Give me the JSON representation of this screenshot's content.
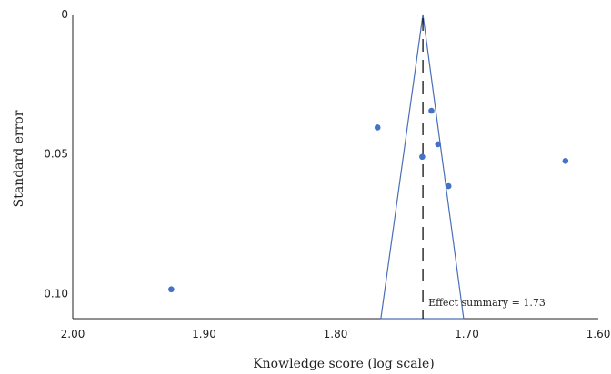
{
  "chart_data": {
    "type": "scatter",
    "title": "",
    "xlabel": "Knowledge score (log scale)",
    "ylabel": "Standard error",
    "x_reversed": true,
    "xlim": [
      2.0,
      1.6
    ],
    "ylim": [
      0,
      0.109
    ],
    "y_inverted": true,
    "x_ticks": [
      {
        "value": 2.0,
        "label": "2.00"
      },
      {
        "value": 1.9,
        "label": "1.90"
      },
      {
        "value": 1.8,
        "label": "1.80"
      },
      {
        "value": 1.7,
        "label": "1.70"
      },
      {
        "value": 1.6,
        "label": "1.60"
      }
    ],
    "y_ticks": [
      {
        "value": 0,
        "label": "0"
      },
      {
        "value": 0.05,
        "label": "0.05"
      },
      {
        "value": 0.1,
        "label": "0.10"
      }
    ],
    "points": [
      {
        "x": 1.925,
        "y": 0.0985
      },
      {
        "x": 1.768,
        "y": 0.0405
      },
      {
        "x": 1.727,
        "y": 0.0345
      },
      {
        "x": 1.722,
        "y": 0.0465
      },
      {
        "x": 1.734,
        "y": 0.051
      },
      {
        "x": 1.714,
        "y": 0.0615
      },
      {
        "x": 1.625,
        "y": 0.0525
      }
    ],
    "summary_effect": 1.73,
    "summary_line_x": 1.7335,
    "funnel": {
      "apex_x": 1.7335,
      "left_base_x": 1.7655,
      "right_base_x": 1.7025
    },
    "annotation": "Effect summary = 1.73",
    "point_color": "#4472c4",
    "funnel_color": "#4a6fb5",
    "axis_color": "#222222",
    "grid": false,
    "legend": "none"
  }
}
